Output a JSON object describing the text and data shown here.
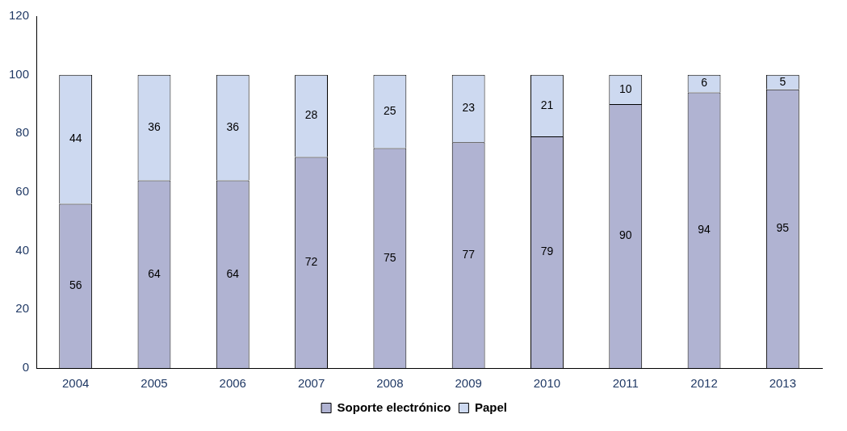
{
  "chart_data": {
    "type": "bar",
    "stacked": true,
    "data_labels": true,
    "legend": "bottom",
    "grid": false,
    "categories": [
      "2004",
      "2005",
      "2006",
      "2007",
      "2008",
      "2009",
      "2010",
      "2011",
      "2012",
      "2013"
    ],
    "series": [
      {
        "name": "Soporte electrónico",
        "color": "#b0b3d2",
        "values": [
          56,
          64,
          64,
          72,
          75,
          77,
          79,
          90,
          94,
          95
        ]
      },
      {
        "name": "Papel",
        "color": "#cdd9f0",
        "values": [
          44,
          36,
          36,
          28,
          25,
          23,
          21,
          10,
          6,
          5
        ]
      }
    ],
    "ylim": [
      0,
      120
    ],
    "yticks": [
      0,
      20,
      40,
      60,
      80,
      100,
      120
    ]
  }
}
